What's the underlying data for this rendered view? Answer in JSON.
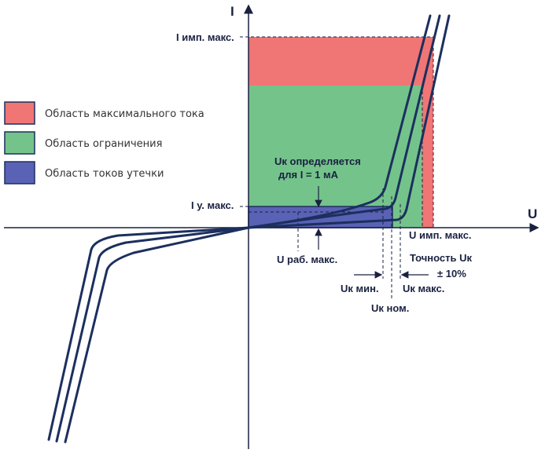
{
  "axes": {
    "y_label": "I",
    "x_label": "U"
  },
  "legend": [
    {
      "label": "Область максимального тока",
      "color": "#f07575"
    },
    {
      "label": "Область ограничения",
      "color": "#74c38b"
    },
    {
      "label": "Область токов утечки",
      "color": "#5a62b5"
    }
  ],
  "labels": {
    "i_imp_max": "I имп. макс.",
    "i_leak_max": "I у. макс.",
    "uk_defined_line1": "Uк определяется",
    "uk_defined_line2": "для I = 1 мА",
    "u_imp_max": "U имп. макс.",
    "u_work_max": "U раб. макс.",
    "uk_min": "Uк мин.",
    "uk_nom": "Uк ном.",
    "uk_max": "Uк макс.",
    "accuracy_line1": "Точность Uк",
    "accuracy_line2": "± 10%"
  },
  "colors": {
    "curve": "#1c2f5e",
    "axis": "#1a2140",
    "max_current": "#f07575",
    "limiting": "#74c38b",
    "leakage": "#5a62b5"
  }
}
